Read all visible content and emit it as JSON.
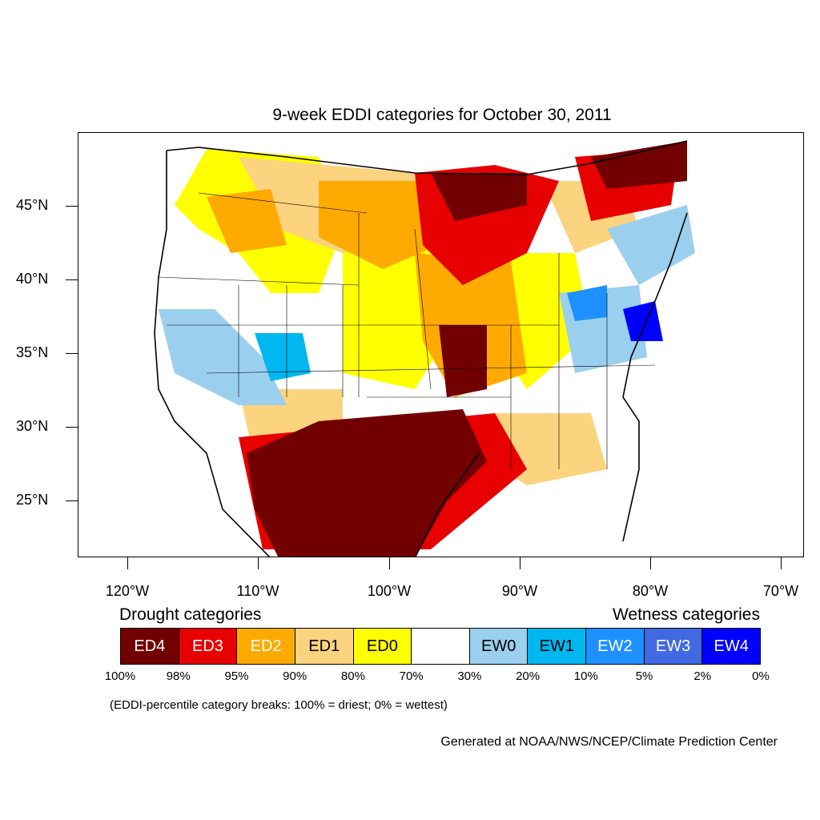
{
  "title": "9-week EDDI categories for October 30, 2011",
  "lat_labels": [
    "45°N",
    "40°N",
    "35°N",
    "30°N",
    "25°N"
  ],
  "lon_labels": [
    "120°W",
    "110°W",
    "100°W",
    "90°W",
    "80°W",
    "70°W"
  ],
  "legend": {
    "drought_heading": "Drought categories",
    "wetness_heading": "Wetness categories",
    "categories": [
      {
        "label": "ED4",
        "color": "#730000",
        "text_color": "#ffffff"
      },
      {
        "label": "ED3",
        "color": "#e60000",
        "text_color": "#ffffff"
      },
      {
        "label": "ED2",
        "color": "#ffaa00",
        "text_color": "#ffffff"
      },
      {
        "label": "ED1",
        "color": "#fcd37f",
        "text_color": "#000000"
      },
      {
        "label": "ED0",
        "color": "#ffff00",
        "text_color": "#000000"
      },
      {
        "label": "",
        "color": "#ffffff",
        "text_color": "#000000"
      },
      {
        "label": "EW0",
        "color": "#9bcfee",
        "text_color": "#000000"
      },
      {
        "label": "EW1",
        "color": "#00b7f0",
        "text_color": "#000000"
      },
      {
        "label": "EW2",
        "color": "#1e90ff",
        "text_color": "#ffffff"
      },
      {
        "label": "EW3",
        "color": "#4169e1",
        "text_color": "#ffffff"
      },
      {
        "label": "EW4",
        "color": "#0000ff",
        "text_color": "#ffffff"
      }
    ],
    "percent_breaks": [
      "100%",
      "98%",
      "95%",
      "90%",
      "80%",
      "70%",
      "30%",
      "20%",
      "10%",
      "5%",
      "2%",
      "0%"
    ]
  },
  "breaks_note": "(EDDI-percentile category breaks: 100% = driest; 0% = wettest)",
  "credit": "Generated at NOAA/NWS/NCEP/Climate Prediction Center"
}
